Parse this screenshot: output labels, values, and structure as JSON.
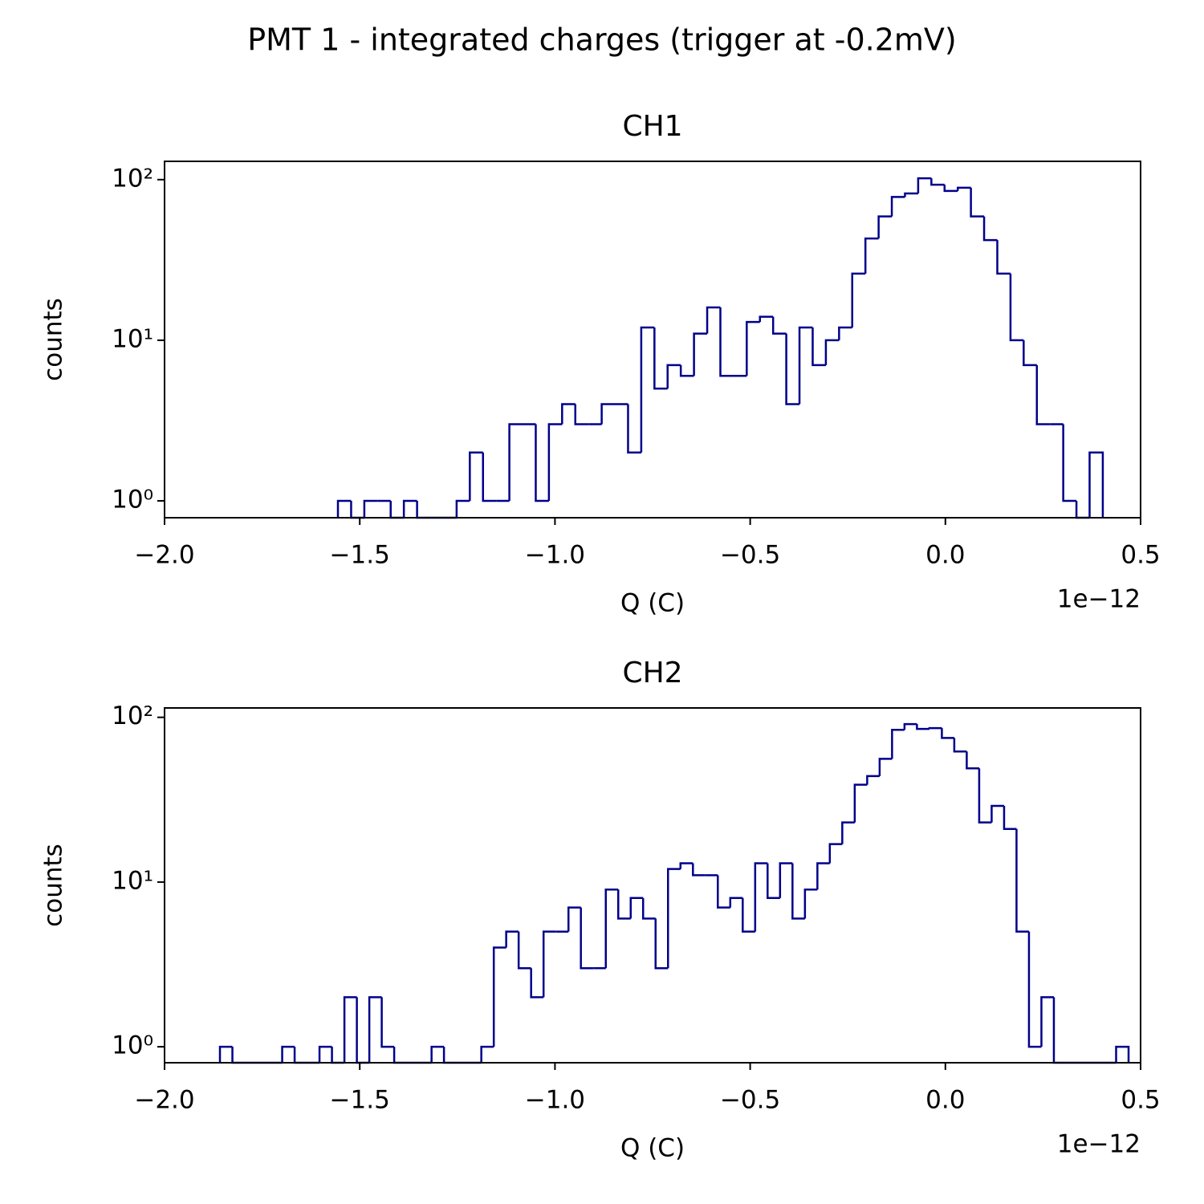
{
  "title": "PMT 1 - integrated charges (trigger at -0.2mV)",
  "chart_data": [
    {
      "type": "histogram",
      "title": "CH1",
      "xlabel": "Q (C)",
      "ylabel": "counts",
      "x_offset_label": "1e−12",
      "color": "#00008b",
      "yscale": "log",
      "xlim": [
        -2,
        0.5
      ],
      "ylim": [
        0.785,
        130
      ],
      "xticks": [
        {
          "value": -2,
          "label": "−2.0"
        },
        {
          "value": -1.5,
          "label": "−1.5"
        },
        {
          "value": -1,
          "label": "−1.0"
        },
        {
          "value": -0.5,
          "label": "−0.5"
        },
        {
          "value": 0,
          "label": "0.0"
        },
        0.5
      ],
      "yticks": [
        {
          "value": 1,
          "label": "10⁰"
        },
        {
          "value": 10,
          "label": "10¹"
        },
        {
          "value": 100,
          "label": "10²"
        }
      ],
      "bins": [
        -1.5559,
        -1.5221,
        -1.4883,
        -1.4546,
        -1.4208,
        -1.387,
        -1.3532,
        -1.3195,
        -1.2857,
        -1.2519,
        -1.2181,
        -1.1843,
        -1.1506,
        -1.1168,
        -1.083,
        -1.0492,
        -1.0155,
        -0.9817,
        -0.9479,
        -0.9141,
        -0.8803,
        -0.8466,
        -0.8128,
        -0.779,
        -0.7452,
        -0.7115,
        -0.6777,
        -0.6439,
        -0.6101,
        -0.5763,
        -0.5426,
        -0.5088,
        -0.475,
        -0.4412,
        -0.4075,
        -0.3737,
        -0.3399,
        -0.3061,
        -0.2723,
        -0.2386,
        -0.2048,
        -0.171,
        -0.1372,
        -0.1035,
        -0.0697,
        -0.0359,
        -0.0021,
        0.0317,
        0.0654,
        0.0992,
        0.133,
        0.1668,
        0.2005,
        0.2343,
        0.2681,
        0.3019,
        0.3357,
        0.3694,
        0.4032
      ],
      "values": [
        1,
        0,
        1,
        1,
        0,
        1,
        0,
        0,
        0,
        1,
        2,
        1,
        1,
        3,
        3,
        1,
        3,
        4,
        3,
        3,
        4,
        4,
        2,
        12,
        5,
        7,
        6,
        11,
        16,
        6,
        6,
        13,
        14,
        11,
        4,
        12,
        7,
        10,
        12,
        26,
        43,
        59,
        78,
        82,
        102,
        93,
        85,
        89,
        59,
        42,
        26,
        10,
        7,
        3,
        3,
        1,
        0,
        2
      ]
    },
    {
      "type": "histogram",
      "title": "CH2",
      "xlabel": "Q (C)",
      "ylabel": "counts",
      "x_offset_label": "1e−12",
      "color": "#00008b",
      "yscale": "log",
      "xlim": [
        -2,
        0.5
      ],
      "ylim": [
        0.8,
        114
      ],
      "xticks": [
        {
          "value": -2,
          "label": "−2.0"
        },
        {
          "value": -1.5,
          "label": "−1.5"
        },
        {
          "value": -1,
          "label": "−1.0"
        },
        {
          "value": -0.5,
          "label": "−0.5"
        },
        {
          "value": 0,
          "label": "0.0"
        },
        0.5
      ],
      "yticks": [
        {
          "value": 1,
          "label": "10⁰"
        },
        {
          "value": 10,
          "label": "10¹"
        },
        {
          "value": 100,
          "label": "10²"
        }
      ],
      "bins": [
        -1.8581,
        -1.8262,
        -1.7943,
        -1.7625,
        -1.7306,
        -1.6987,
        -1.6668,
        -1.6349,
        -1.6031,
        -1.5712,
        -1.5393,
        -1.5074,
        -1.4755,
        -1.4437,
        -1.4118,
        -1.3799,
        -1.348,
        -1.3161,
        -1.2843,
        -1.2524,
        -1.2205,
        -1.1886,
        -1.1567,
        -1.1249,
        -1.093,
        -1.0611,
        -1.0292,
        -0.9973,
        -0.9654,
        -0.9336,
        -0.9017,
        -0.8698,
        -0.8379,
        -0.806,
        -0.7742,
        -0.7423,
        -0.7104,
        -0.6785,
        -0.6466,
        -0.6148,
        -0.5829,
        -0.551,
        -0.5191,
        -0.4872,
        -0.4554,
        -0.4235,
        -0.3916,
        -0.3597,
        -0.3278,
        -0.296,
        -0.2641,
        -0.2322,
        -0.2003,
        -0.1684,
        -0.1366,
        -0.1047,
        -0.0728,
        -0.0409,
        -0.009,
        0.0228,
        0.0547,
        0.0866,
        0.1185,
        0.1504,
        0.1822,
        0.2141,
        0.246,
        0.2779,
        0.3098,
        0.3416,
        0.3735,
        0.4054,
        0.4373,
        0.4692
      ],
      "values": [
        1,
        0,
        0,
        0,
        0,
        1,
        0,
        0,
        1,
        0,
        2,
        0,
        2,
        1,
        0,
        0,
        0,
        1,
        0,
        0,
        0,
        1,
        4,
        5,
        3,
        2,
        5,
        5,
        7,
        3,
        3,
        9,
        6,
        8,
        6,
        3,
        12,
        13,
        11,
        11,
        7,
        8,
        5,
        13,
        8,
        13,
        6,
        9,
        13,
        17,
        23,
        39,
        44,
        56,
        84,
        91,
        85,
        86,
        75,
        62,
        49,
        23,
        29,
        21,
        5,
        1,
        2,
        0,
        0,
        0,
        0,
        0,
        1
      ]
    }
  ]
}
